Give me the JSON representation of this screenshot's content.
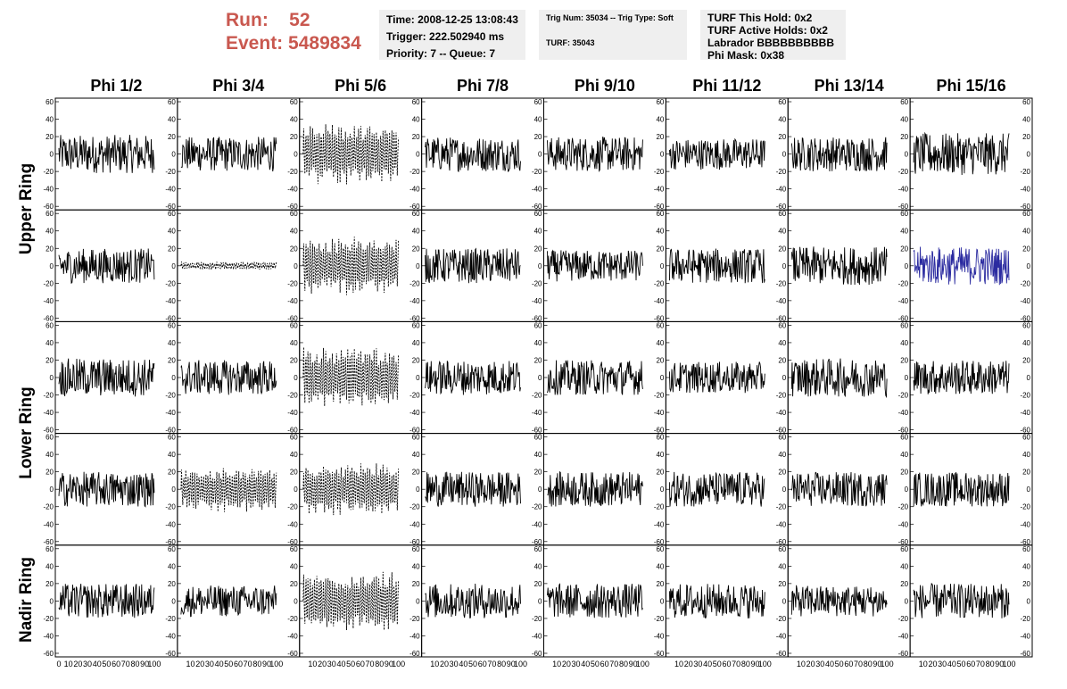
{
  "header": {
    "run_label": "Run:",
    "run_value": "52",
    "event_label": "Event:",
    "event_value": "5489834"
  },
  "info_box_1": {
    "time": "Time: 2008-12-25 13:08:43",
    "trigger": "Trigger: 222.502940 ms",
    "priority": "Priority: 7 -- Queue: 7"
  },
  "info_box_2": {
    "trig": "Trig Num: 35034 -- Trig Type: Soft",
    "turf": "TURF: 35043"
  },
  "info_box_3": {
    "hold": "TURF This Hold: 0x2",
    "active": "TURF Active Holds: 0x2",
    "labrador": "Labrador BBBBBBBBBB",
    "phimask": "Phi Mask: 0x38"
  },
  "chart_data": {
    "type": "line",
    "columns": [
      "Phi 1/2",
      "Phi 3/4",
      "Phi 5/6",
      "Phi 7/8",
      "Phi 9/10",
      "Phi 11/12",
      "Phi 13/14",
      "Phi 15/16"
    ],
    "rows": [
      "Upper Ring",
      "Lower Ring",
      "Nadir Ring"
    ],
    "x_range": [
      0,
      100
    ],
    "y_range": [
      -60,
      60
    ],
    "y_ticks": [
      -60,
      -40,
      -20,
      0,
      20,
      40,
      60
    ],
    "x_ticks": [
      0,
      10,
      20,
      30,
      40,
      50,
      60,
      70,
      80,
      90,
      100
    ],
    "panels_per_row": [
      2,
      2,
      1
    ],
    "series_amplitude": [
      [
        22,
        20,
        30,
        20,
        20,
        18,
        20,
        24
      ],
      [
        20,
        4,
        28,
        20,
        18,
        20,
        22,
        22
      ],
      [
        22,
        20,
        30,
        20,
        20,
        18,
        22,
        20
      ],
      [
        20,
        22,
        26,
        20,
        20,
        20,
        20,
        20
      ],
      [
        20,
        18,
        30,
        20,
        20,
        20,
        18,
        20
      ]
    ],
    "dashed_panels": [
      [
        0,
        2
      ],
      [
        1,
        1
      ],
      [
        1,
        2
      ],
      [
        2,
        2
      ],
      [
        3,
        1
      ],
      [
        3,
        2
      ],
      [
        4,
        2
      ]
    ],
    "highlight_panels": [
      [
        1,
        7
      ]
    ],
    "colors": {
      "trace": "#000000",
      "highlight": "#2b2ba0",
      "frame": "#000000"
    }
  }
}
